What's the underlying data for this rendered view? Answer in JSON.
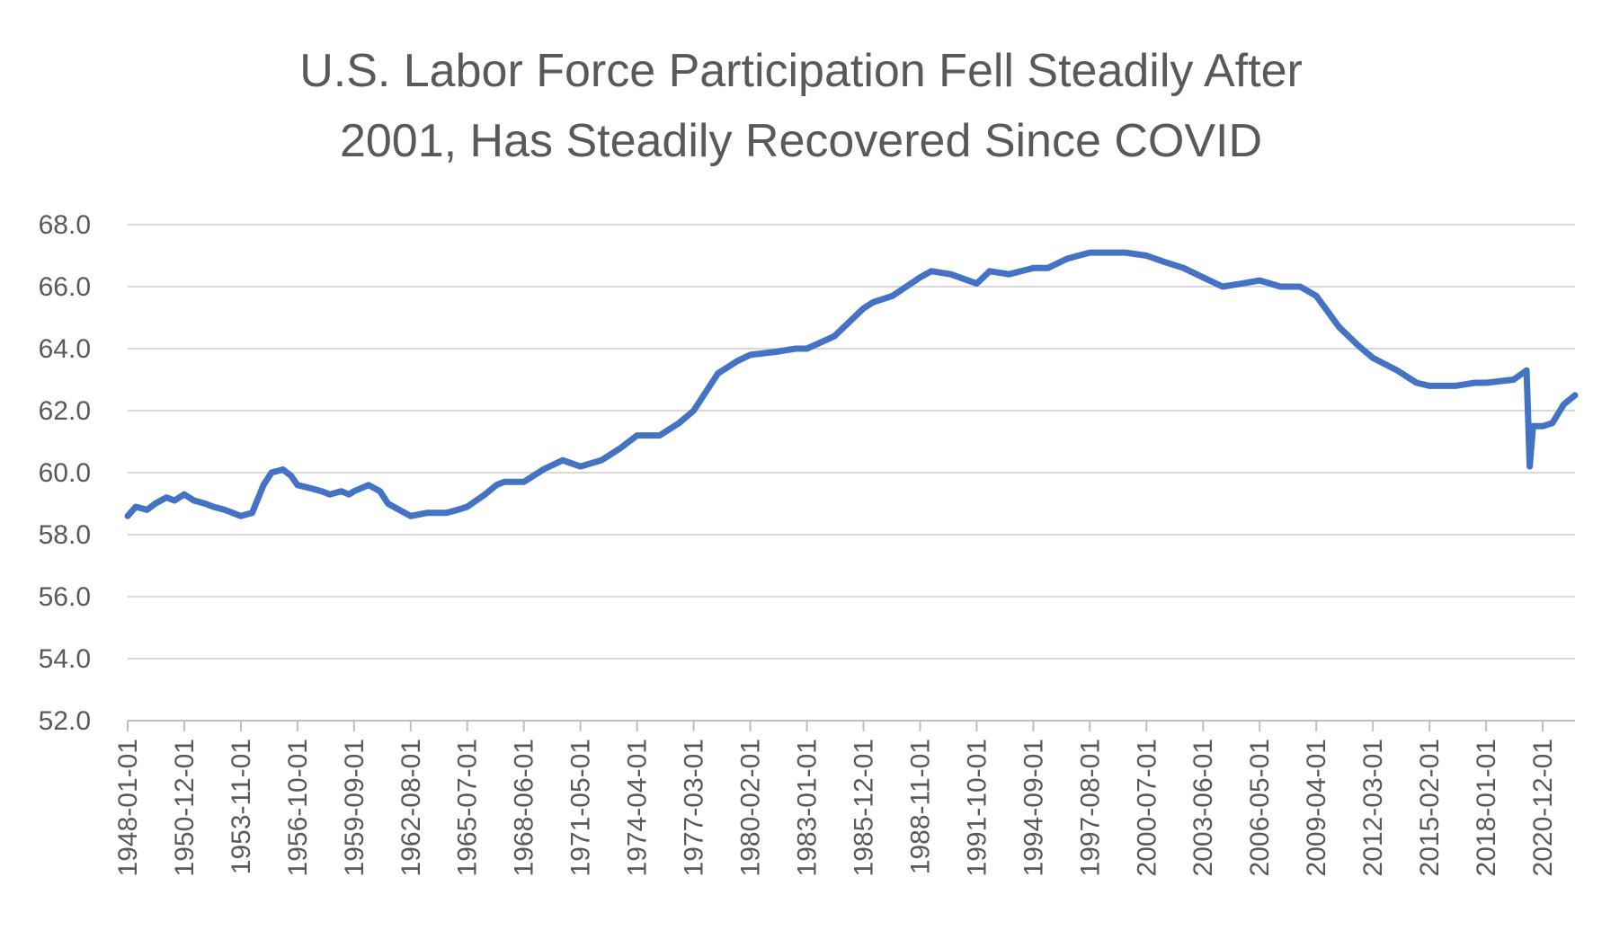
{
  "chart_data": {
    "type": "line",
    "title_lines": [
      "U.S. Labor Force Participation Fell Steadily After",
      "2001, Has Steadily Recovered Since COVID"
    ],
    "xlabel": "",
    "ylabel": "",
    "ylim": [
      52.0,
      68.0
    ],
    "yticks": [
      "52.0",
      "54.0",
      "56.0",
      "58.0",
      "60.0",
      "62.0",
      "64.0",
      "66.0",
      "68.0"
    ],
    "xlim": [
      "1948-01-01",
      "2022-08-01"
    ],
    "xticks": [
      "1948-01-01",
      "1950-12-01",
      "1953-11-01",
      "1956-10-01",
      "1959-09-01",
      "1962-08-01",
      "1965-07-01",
      "1968-06-01",
      "1971-05-01",
      "1974-04-01",
      "1977-03-01",
      "1980-02-01",
      "1983-01-01",
      "1985-12-01",
      "1988-11-01",
      "1991-10-01",
      "1994-09-01",
      "1997-08-01",
      "2000-07-01",
      "2003-06-01",
      "2006-05-01",
      "2009-04-01",
      "2012-03-01",
      "2015-02-01",
      "2018-01-01",
      "2020-12-01"
    ],
    "grid": true,
    "legend": "none",
    "series_color": "#4472C4",
    "series": [
      {
        "x": [
          "1948-01-01",
          "1948-06-01",
          "1949-01-01",
          "1949-06-01",
          "1950-01-01",
          "1950-06-01",
          "1950-12-01",
          "1951-06-01",
          "1952-01-01",
          "1952-06-01",
          "1953-01-01",
          "1953-06-01",
          "1953-11-01",
          "1954-06-01",
          "1955-01-01",
          "1955-06-01",
          "1956-01-01",
          "1956-06-01",
          "1956-10-01",
          "1957-06-01",
          "1958-01-01",
          "1958-06-01",
          "1959-01-01",
          "1959-06-01",
          "1959-09-01",
          "1960-06-01",
          "1961-01-01",
          "1961-06-01",
          "1962-01-01",
          "1962-08-01",
          "1963-06-01",
          "1964-01-01",
          "1964-06-01",
          "1965-01-01",
          "1965-07-01",
          "1966-06-01",
          "1967-01-01",
          "1967-06-01",
          "1968-06-01",
          "1969-06-01",
          "1970-06-01",
          "1971-05-01",
          "1972-06-01",
          "1973-06-01",
          "1974-04-01",
          "1975-06-01",
          "1976-06-01",
          "1977-03-01",
          "1978-06-01",
          "1979-06-01",
          "1980-02-01",
          "1981-06-01",
          "1982-06-01",
          "1983-01-01",
          "1984-06-01",
          "1985-12-01",
          "1986-06-01",
          "1987-06-01",
          "1988-11-01",
          "1989-06-01",
          "1990-06-01",
          "1991-10-01",
          "1992-06-01",
          "1993-06-01",
          "1994-09-01",
          "1995-06-01",
          "1996-06-01",
          "1997-08-01",
          "1998-06-01",
          "1999-06-01",
          "2000-07-01",
          "2001-06-01",
          "2002-06-01",
          "2003-06-01",
          "2004-06-01",
          "2005-06-01",
          "2006-05-01",
          "2007-06-01",
          "2008-06-01",
          "2009-04-01",
          "2010-06-01",
          "2011-06-01",
          "2012-03-01",
          "2013-06-01",
          "2014-06-01",
          "2015-02-01",
          "2016-06-01",
          "2017-06-01",
          "2018-01-01",
          "2019-06-01",
          "2020-02-01",
          "2020-04-01",
          "2020-06-01",
          "2020-12-01",
          "2021-06-01",
          "2022-01-01",
          "2022-08-01"
        ],
        "values": [
          58.6,
          58.9,
          58.8,
          59.0,
          59.2,
          59.1,
          59.3,
          59.1,
          59.0,
          58.9,
          58.8,
          58.7,
          58.6,
          58.7,
          59.6,
          60.0,
          60.1,
          59.9,
          59.6,
          59.5,
          59.4,
          59.3,
          59.4,
          59.3,
          59.4,
          59.6,
          59.4,
          59.0,
          58.8,
          58.6,
          58.7,
          58.7,
          58.7,
          58.8,
          58.9,
          59.3,
          59.6,
          59.7,
          59.7,
          60.1,
          60.4,
          60.2,
          60.4,
          60.8,
          61.2,
          61.2,
          61.6,
          62.0,
          63.2,
          63.6,
          63.8,
          63.9,
          64.0,
          64.0,
          64.4,
          65.3,
          65.5,
          65.7,
          66.3,
          66.5,
          66.4,
          66.1,
          66.5,
          66.4,
          66.6,
          66.6,
          66.9,
          67.1,
          67.1,
          67.1,
          67.0,
          66.8,
          66.6,
          66.3,
          66.0,
          66.1,
          66.2,
          66.0,
          66.0,
          65.7,
          64.7,
          64.1,
          63.7,
          63.3,
          62.9,
          62.8,
          62.8,
          62.9,
          62.9,
          63.0,
          63.3,
          60.2,
          61.5,
          61.5,
          61.6,
          62.2,
          62.5
        ]
      }
    ]
  }
}
